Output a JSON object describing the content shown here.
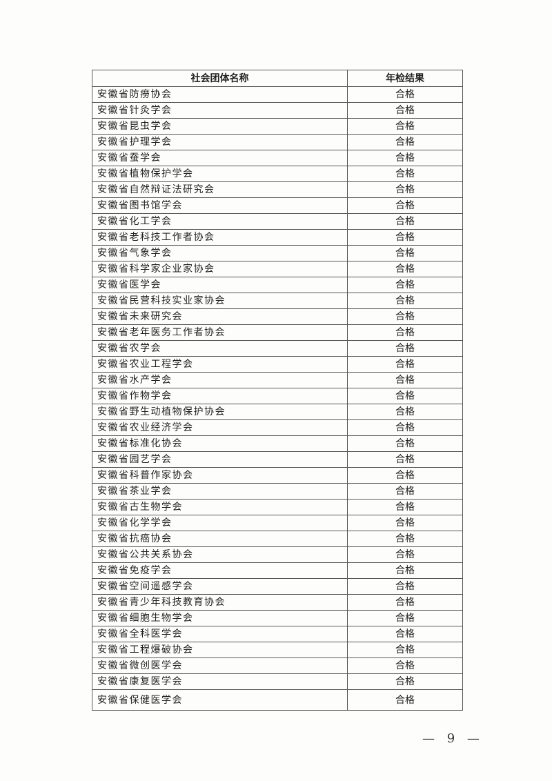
{
  "table": {
    "headers": [
      "社会团体名称",
      "年检结果"
    ],
    "rows": [
      {
        "name": "安徽省防痨协会",
        "result": "合格"
      },
      {
        "name": "安徽省针灸学会",
        "result": "合格"
      },
      {
        "name": "安徽省昆虫学会",
        "result": "合格"
      },
      {
        "name": "安徽省护理学会",
        "result": "合格"
      },
      {
        "name": "安徽省蚕学会",
        "result": "合格"
      },
      {
        "name": "安徽省植物保护学会",
        "result": "合格"
      },
      {
        "name": "安徽省自然辩证法研究会",
        "result": "合格"
      },
      {
        "name": "安徽省图书馆学会",
        "result": "合格"
      },
      {
        "name": "安徽省化工学会",
        "result": "合格"
      },
      {
        "name": "安徽省老科技工作者协会",
        "result": "合格"
      },
      {
        "name": "安徽省气象学会",
        "result": "合格"
      },
      {
        "name": "安徽省科学家企业家协会",
        "result": "合格"
      },
      {
        "name": "安徽省医学会",
        "result": "合格"
      },
      {
        "name": "安徽省民营科技实业家协会",
        "result": "合格"
      },
      {
        "name": "安徽省未来研究会",
        "result": "合格"
      },
      {
        "name": "安徽省老年医务工作者协会",
        "result": "合格"
      },
      {
        "name": "安徽省农学会",
        "result": "合格"
      },
      {
        "name": "安徽省农业工程学会",
        "result": "合格"
      },
      {
        "name": "安徽省水产学会",
        "result": "合格"
      },
      {
        "name": "安徽省作物学会",
        "result": "合格"
      },
      {
        "name": "安徽省野生动植物保护协会",
        "result": "合格"
      },
      {
        "name": "安徽省农业经济学会",
        "result": "合格"
      },
      {
        "name": "安徽省标准化协会",
        "result": "合格"
      },
      {
        "name": "安徽省园艺学会",
        "result": "合格"
      },
      {
        "name": "安徽省科普作家协会",
        "result": "合格"
      },
      {
        "name": "安徽省茶业学会",
        "result": "合格"
      },
      {
        "name": "安徽省古生物学会",
        "result": "合格"
      },
      {
        "name": "安徽省化学学会",
        "result": "合格"
      },
      {
        "name": "安徽省抗癌协会",
        "result": "合格"
      },
      {
        "name": "安徽省公共关系协会",
        "result": "合格"
      },
      {
        "name": "安徽省免疫学会",
        "result": "合格"
      },
      {
        "name": "安徽省空间遥感学会",
        "result": "合格"
      },
      {
        "name": "安徽省青少年科技教育协会",
        "result": "合格"
      },
      {
        "name": "安徽省细胞生物学会",
        "result": "合格"
      },
      {
        "name": "安徽省全科医学会",
        "result": "合格"
      },
      {
        "name": "安徽省工程爆破协会",
        "result": "合格"
      },
      {
        "name": "安徽省微创医学会",
        "result": "合格"
      },
      {
        "name": "安徽省康复医学会",
        "result": "合格"
      },
      {
        "name": "安徽省保健医学会",
        "result": "合格"
      }
    ]
  },
  "footer": {
    "page_number": "— 9 —"
  }
}
